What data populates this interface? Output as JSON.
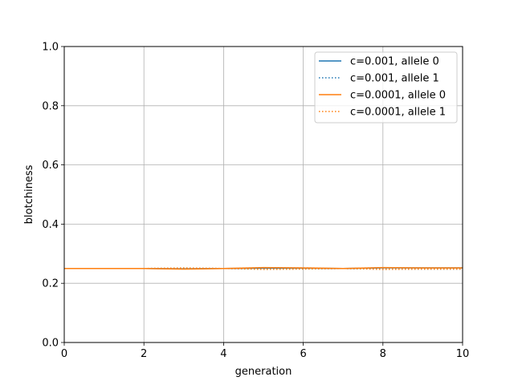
{
  "chart_data": {
    "type": "line",
    "xlabel": "generation",
    "ylabel": "blotchiness",
    "xlim": [
      0,
      10
    ],
    "ylim": [
      0,
      1.0
    ],
    "xticks": [
      "0",
      "2",
      "4",
      "6",
      "8",
      "10"
    ],
    "yticks": [
      "0.0",
      "0.2",
      "0.4",
      "0.6",
      "0.8",
      "1.0"
    ],
    "grid": true,
    "legend_position": "top-right",
    "x": [
      0,
      1,
      2,
      3,
      4,
      5,
      6,
      7,
      8,
      9,
      10
    ],
    "series": [
      {
        "name": "c=0.001, allele 0",
        "color": "#1f77b4",
        "style": "solid",
        "values": [
          0.25,
          0.25,
          0.25,
          0.249,
          0.25,
          0.251,
          0.251,
          0.25,
          0.252,
          0.252,
          0.252
        ]
      },
      {
        "name": "c=0.001, allele 1",
        "color": "#1f77b4",
        "style": "dotted",
        "values": [
          0.25,
          0.25,
          0.25,
          0.251,
          0.25,
          0.249,
          0.249,
          0.25,
          0.248,
          0.248,
          0.248
        ]
      },
      {
        "name": "c=0.0001, allele 0",
        "color": "#ff7f0e",
        "style": "solid",
        "values": [
          0.25,
          0.25,
          0.25,
          0.248,
          0.25,
          0.253,
          0.252,
          0.25,
          0.253,
          0.252,
          0.252
        ]
      },
      {
        "name": "c=0.0001, allele 1",
        "color": "#ff7f0e",
        "style": "dotted",
        "values": [
          0.25,
          0.25,
          0.25,
          0.252,
          0.25,
          0.247,
          0.248,
          0.25,
          0.247,
          0.248,
          0.248
        ]
      }
    ]
  }
}
